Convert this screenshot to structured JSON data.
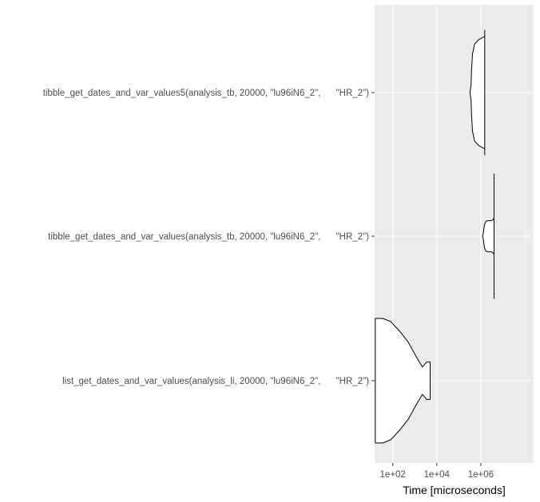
{
  "chart_data": {
    "type": "violin",
    "xlabel": "Time [microseconds]",
    "ylabel": "",
    "xscale": "log10",
    "xlim": [
      15,
      250000000
    ],
    "x_ticks": [
      {
        "value": 100,
        "label": "1e+02"
      },
      {
        "value": 10000,
        "label": "1e+04"
      },
      {
        "value": 1000000,
        "label": "1e+06"
      }
    ],
    "categories": [
      "tibble_get_dates_and_var_values5(analysis_tb, 20000, \"lu96iN6_2\",      \"HR_2\")",
      "tibble_get_dates_and_var_values(analysis_tb, 20000, \"lu96iN6_2\",      \"HR_2\")",
      "list_get_dates_and_var_values(analysis_li, 20000, \"lu96iN6_2\",      \"HR_2\")"
    ],
    "violins": [
      {
        "category": "tibble_get_dates_and_var_values5(analysis_tb, 20000, \"lu96iN6_2\",      \"HR_2\")",
        "profile": [
          [
            320000,
            0
          ],
          [
            360000,
            0.12
          ],
          [
            380000,
            0.35
          ],
          [
            420000,
            0.62
          ],
          [
            520000,
            0.78
          ],
          [
            800000,
            0.85
          ],
          [
            1100000,
            0.88
          ],
          [
            1500000,
            0.9
          ],
          [
            1500000,
            1.0
          ]
        ]
      },
      {
        "category": "tibble_get_dates_and_var_values(analysis_tb, 20000, \"lu96iN6_2\",      \"HR_2\")",
        "profile": [
          [
            1200000,
            0
          ],
          [
            1300000,
            0.05
          ],
          [
            1450000,
            0.18
          ],
          [
            1700000,
            0.24
          ],
          [
            2100000,
            0.25
          ],
          [
            3000000,
            0.25
          ],
          [
            3700000,
            0.27
          ],
          [
            4000000,
            0.3
          ],
          [
            4000000,
            1.0
          ]
        ]
      },
      {
        "category": "list_get_dates_and_var_values(analysis_li, 20000, \"lu96iN6_2\",      \"HR_2\")",
        "profile": [
          [
            16,
            1.0
          ],
          [
            20,
            1.0
          ],
          [
            35,
            1.0
          ],
          [
            80,
            0.95
          ],
          [
            200,
            0.8
          ],
          [
            500,
            0.62
          ],
          [
            1100,
            0.4
          ],
          [
            2200,
            0.22
          ],
          [
            3500,
            0.3
          ],
          [
            5000,
            0.3
          ],
          [
            5000,
            0
          ]
        ]
      }
    ],
    "grid": true,
    "legend": "none"
  },
  "colors": {
    "panel_background": "#ebebeb",
    "grid_major": "#ffffff",
    "grid_minor": "#f5f5f5",
    "violin_outline": "#000000",
    "violin_fill": "#ffffff"
  }
}
